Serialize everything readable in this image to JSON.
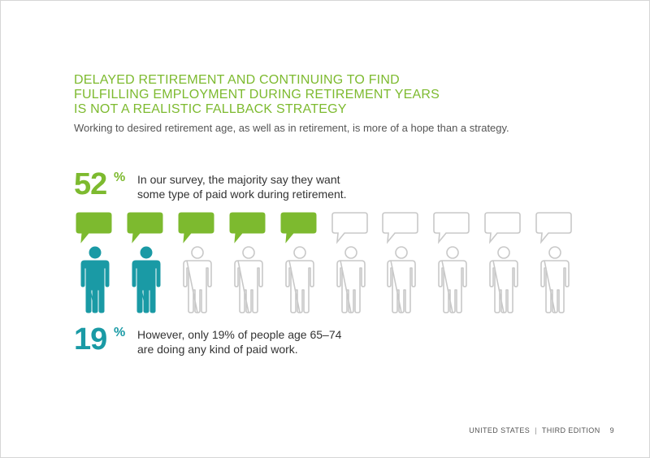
{
  "headline": {
    "lines": [
      "DELAYED RETIREMENT AND CONTINUING TO FIND",
      "FULFILLING EMPLOYMENT DURING RETIREMENT YEARS",
      "IS NOT A REALISTIC FALLBACK STRATEGY"
    ],
    "subtitle": "Working to desired retirement age, as well as in retirement, is more of a hope than a strategy."
  },
  "stat_want_work": {
    "value": "52",
    "unit": "%",
    "text_lines": [
      "In our survey, the majority say they want",
      "some type of paid work during retirement."
    ]
  },
  "stat_doing_work": {
    "value": "19",
    "unit": "%",
    "text_lines": [
      "However, only 19% of people age 65–74",
      "are doing any kind of paid work."
    ]
  },
  "pictogram": {
    "total_figures": 10,
    "speech_bubbles_filled": 5,
    "people_filled": 2,
    "colors": {
      "green": "#7dba2f",
      "teal": "#1a9aa5",
      "outline": "#c8c8c8"
    },
    "icons": [
      "speech-bubble-icon",
      "person-icon"
    ]
  },
  "footer": {
    "edition": "UNITED STATES",
    "separator": "|",
    "edition_label": "THIRD EDITION",
    "page_number": "9"
  }
}
